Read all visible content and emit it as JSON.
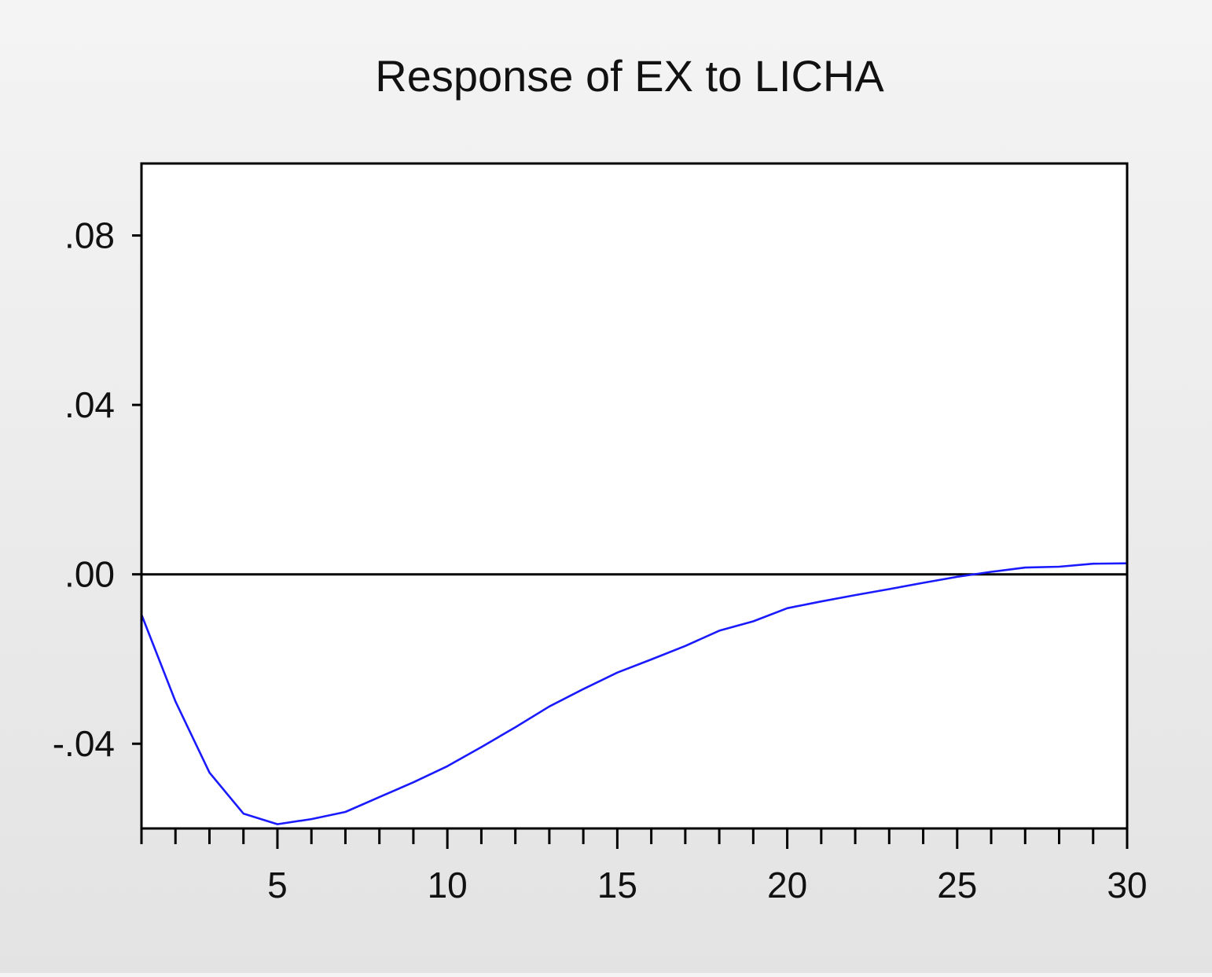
{
  "colors": {
    "series_line": "#1a1aff",
    "zero_line": "#000000",
    "frame": "#000000",
    "plot_background": "#ffffff",
    "text": "#111111"
  },
  "chart_data": {
    "type": "line",
    "title": "Response of EX to LICHA",
    "xlabel": "",
    "ylabel": "",
    "xlim": [
      1,
      30
    ],
    "ylim": [
      -0.06,
      0.097
    ],
    "x_ticks": [
      {
        "value": 5,
        "label": "5"
      },
      {
        "value": 10,
        "label": "10"
      },
      {
        "value": 15,
        "label": "15"
      },
      {
        "value": 20,
        "label": "20"
      },
      {
        "value": 25,
        "label": "25"
      },
      {
        "value": 30,
        "label": "30"
      }
    ],
    "y_ticks": [
      {
        "value": 0.08,
        "label": ".08"
      },
      {
        "value": 0.04,
        "label": ".04"
      },
      {
        "value": 0.0,
        "label": ".00"
      },
      {
        "value": -0.04,
        "label": "-.04"
      }
    ],
    "grid": false,
    "zero_line": true,
    "legend": "none",
    "x": [
      1,
      2,
      3,
      4,
      5,
      6,
      7,
      8,
      9,
      10,
      11,
      12,
      13,
      14,
      15,
      16,
      17,
      18,
      19,
      20,
      21,
      22,
      23,
      24,
      25,
      26,
      27,
      28,
      29,
      30
    ],
    "series": [
      {
        "values": [
          -0.0095,
          -0.03,
          -0.0468,
          -0.0565,
          -0.059,
          -0.0578,
          -0.0561,
          -0.0526,
          -0.0491,
          -0.0453,
          -0.0408,
          -0.0361,
          -0.0312,
          -0.0271,
          -0.0232,
          -0.0201,
          -0.0169,
          -0.0133,
          -0.0111,
          -0.008,
          -0.0064,
          -0.0049,
          -0.0035,
          -0.002,
          -0.0006,
          0.0006,
          0.0016,
          0.0018,
          0.0025,
          0.0026
        ]
      }
    ]
  }
}
